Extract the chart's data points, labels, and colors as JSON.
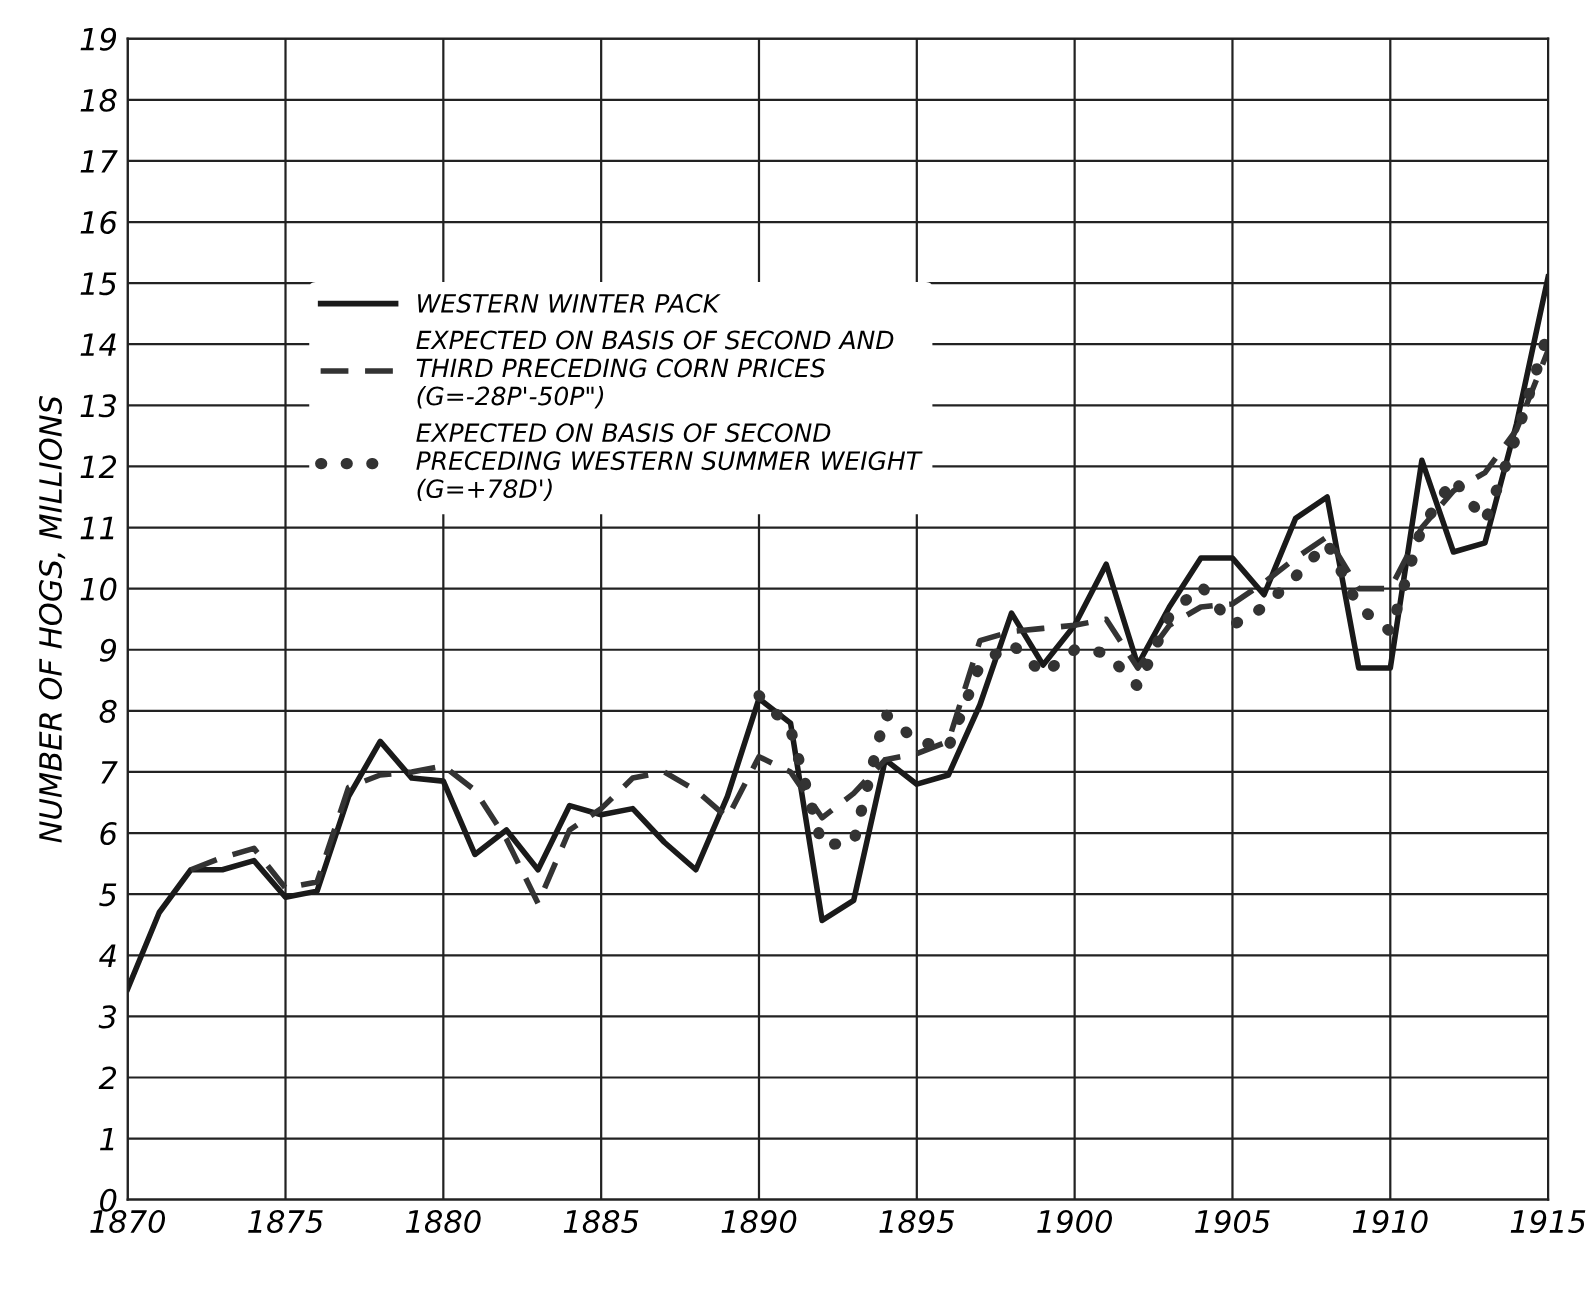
{
  "chart_data": {
    "type": "line",
    "ylabel": "NUMBER OF HOGS, MILLIONS",
    "xlim": [
      1870,
      1915
    ],
    "xticks": [
      1870,
      1875,
      1880,
      1885,
      1890,
      1895,
      1900,
      1905,
      1910,
      1915
    ],
    "ylim": [
      0,
      19
    ],
    "yticks": [
      0,
      1,
      2,
      3,
      4,
      5,
      6,
      7,
      8,
      9,
      10,
      11,
      12,
      13,
      14,
      15,
      16,
      17,
      18,
      19
    ],
    "grid": true,
    "legend": "top left",
    "series": [
      {
        "name": "WESTERN WINTER PACK",
        "color": "#1a1a1a",
        "line_style": "solid",
        "x": [
          1870,
          1871,
          1872,
          1873,
          1874,
          1875,
          1876,
          1877,
          1878,
          1879,
          1880,
          1881,
          1882,
          1883,
          1884,
          1885,
          1886,
          1887,
          1888,
          1889,
          1890,
          1891,
          1892,
          1893,
          1894,
          1895,
          1896,
          1897,
          1898,
          1899,
          1900,
          1901,
          1902,
          1903,
          1904,
          1905,
          1906,
          1907,
          1908,
          1909,
          1910,
          1911,
          1912,
          1913,
          1914,
          1915
        ],
        "values": [
          3.45,
          4.7,
          5.4,
          5.4,
          5.55,
          4.95,
          5.05,
          6.6,
          7.5,
          6.9,
          6.85,
          5.65,
          6.05,
          5.4,
          6.45,
          6.3,
          6.4,
          5.85,
          5.4,
          6.6,
          8.2,
          7.8,
          4.57,
          4.9,
          7.2,
          6.8,
          6.95,
          8.1,
          9.6,
          8.75,
          9.4,
          10.4,
          8.75,
          9.7,
          10.5,
          10.5,
          9.9,
          11.15,
          11.5,
          8.7,
          8.7,
          12.1,
          10.6,
          10.75,
          12.7,
          15.1
        ]
      },
      {
        "name": "EXPECTED ON BASIS OF SECOND AND\nTHIRD PRECEDING CORN PRICES\n(G=-28P'-50P\")",
        "color": "#333333",
        "line_style": "dashed",
        "x": [
          1872,
          1873,
          1874,
          1875,
          1876,
          1877,
          1878,
          1879,
          1880,
          1881,
          1882,
          1883,
          1884,
          1885,
          1886,
          1887,
          1888,
          1889,
          1890,
          1891,
          1892,
          1893,
          1894,
          1895,
          1896,
          1897,
          1898,
          1899,
          1900,
          1901,
          1902,
          1903,
          1904,
          1905,
          1906,
          1907,
          1908,
          1909,
          1910,
          1911,
          1912,
          1913,
          1914,
          1915
        ],
        "values": [
          5.4,
          5.6,
          5.75,
          5.1,
          5.2,
          6.75,
          6.95,
          7.0,
          7.1,
          6.7,
          5.9,
          4.85,
          6.05,
          6.4,
          6.9,
          7.0,
          6.7,
          6.25,
          7.25,
          7.0,
          6.25,
          6.65,
          7.2,
          7.3,
          7.5,
          9.15,
          9.3,
          9.35,
          9.4,
          9.5,
          8.7,
          9.4,
          9.7,
          9.75,
          10.1,
          10.5,
          10.85,
          10.0,
          10.0,
          11.0,
          11.6,
          11.9,
          12.6,
          13.9
        ]
      },
      {
        "name": "EXPECTED ON BASIS OF SECOND\nPRECEDING WESTERN SUMMER WEIGHT\n(G=+78D')",
        "color": "#333333",
        "line_style": "dotted",
        "x": [
          1890,
          1891,
          1892,
          1893,
          1894,
          1895,
          1896,
          1897,
          1898,
          1899,
          1900,
          1901,
          1902,
          1903,
          1904,
          1905,
          1906,
          1907,
          1908,
          1909,
          1910,
          1911,
          1912,
          1913,
          1914,
          1915
        ],
        "values": [
          8.25,
          7.7,
          5.8,
          5.85,
          7.95,
          7.5,
          7.4,
          8.75,
          9.1,
          8.6,
          9.0,
          8.95,
          8.4,
          9.55,
          10.05,
          9.4,
          9.7,
          10.2,
          10.75,
          9.7,
          9.3,
          11.0,
          11.8,
          11.1,
          12.5,
          14.2
        ]
      }
    ]
  }
}
